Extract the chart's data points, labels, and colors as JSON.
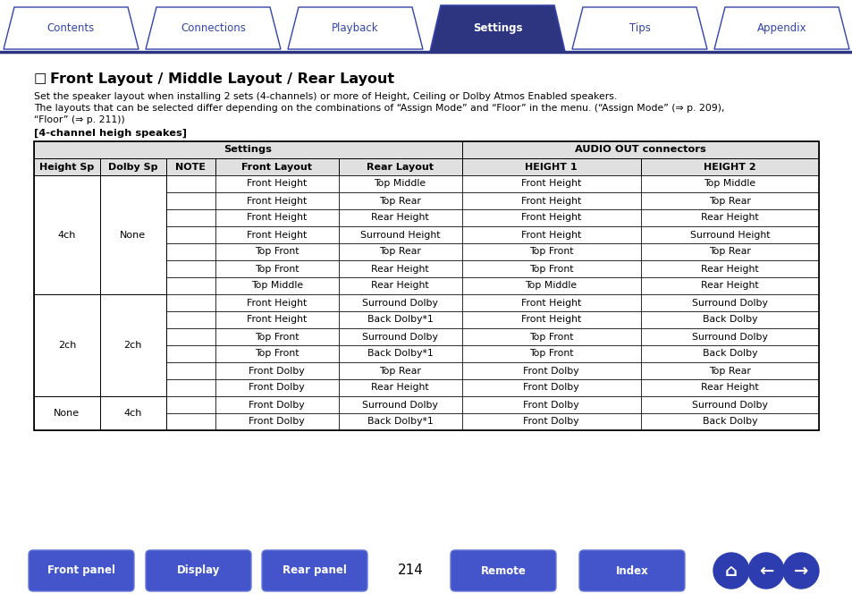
{
  "bg_color": "#ffffff",
  "tab_labels": [
    "Contents",
    "Connections",
    "Playback",
    "Settings",
    "Tips",
    "Appendix"
  ],
  "active_tab": 3,
  "tab_color_active": "#2d3580",
  "tab_color_inactive": "#ffffff",
  "tab_text_color_active": "#ffffff",
  "tab_text_color_inactive": "#3344aa",
  "tab_border_color": "#3344aa",
  "nav_line_color": "#2d3580",
  "section_title_square": "□",
  "section_title_text": "Front Layout / Middle Layout / Rear Layout",
  "body_text1": "Set the speaker layout when installing 2 sets (4-channels) or more of Height, Ceiling or Dolby Atmos Enabled speakers.",
  "body_text2": "The layouts that can be selected differ depending on the combinations of “Assign Mode” and “Floor” in the menu. (“Assign Mode” (⇒ p. 209),",
  "body_text3": "“Floor” (⇒ p. 211))",
  "section_label": "[4-channel heigh speakes]",
  "table_header1_left": "Settings",
  "table_header1_right": "AUDIO OUT connectors",
  "table_header2": [
    "Height Sp",
    "Dolby Sp",
    "NOTE",
    "Front Layout",
    "Rear Layout",
    "HEIGHT 1",
    "HEIGHT 2"
  ],
  "table_rows": [
    [
      "4ch",
      "None",
      "",
      "Front Height",
      "Top Middle",
      "Front Height",
      "Top Middle"
    ],
    [
      "",
      "",
      "",
      "Front Height",
      "Top Rear",
      "Front Height",
      "Top Rear"
    ],
    [
      "",
      "",
      "",
      "Front Height",
      "Rear Height",
      "Front Height",
      "Rear Height"
    ],
    [
      "",
      "",
      "",
      "Front Height",
      "Surround Height",
      "Front Height",
      "Surround Height"
    ],
    [
      "",
      "",
      "",
      "Top Front",
      "Top Rear",
      "Top Front",
      "Top Rear"
    ],
    [
      "",
      "",
      "",
      "Top Front",
      "Rear Height",
      "Top Front",
      "Rear Height"
    ],
    [
      "",
      "",
      "",
      "Top Middle",
      "Rear Height",
      "Top Middle",
      "Rear Height"
    ],
    [
      "2ch",
      "2ch",
      "",
      "Front Height",
      "Surround Dolby",
      "Front Height",
      "Surround Dolby"
    ],
    [
      "",
      "",
      "",
      "Front Height",
      "Back Dolby*1",
      "Front Height",
      "Back Dolby"
    ],
    [
      "",
      "",
      "",
      "Top Front",
      "Surround Dolby",
      "Top Front",
      "Surround Dolby"
    ],
    [
      "",
      "",
      "",
      "Top Front",
      "Back Dolby*1",
      "Top Front",
      "Back Dolby"
    ],
    [
      "",
      "",
      "",
      "Front Dolby",
      "Top Rear",
      "Front Dolby",
      "Top Rear"
    ],
    [
      "",
      "",
      "",
      "Front Dolby",
      "Rear Height",
      "Front Dolby",
      "Rear Height"
    ],
    [
      "None",
      "4ch",
      "",
      "Front Dolby",
      "Surround Dolby",
      "Front Dolby",
      "Surround Dolby"
    ],
    [
      "",
      "",
      "",
      "Front Dolby",
      "Back Dolby*1",
      "Front Dolby",
      "Back Dolby"
    ]
  ],
  "merge_groups": [
    [
      0,
      7,
      0,
      "4ch"
    ],
    [
      0,
      7,
      1,
      "None"
    ],
    [
      7,
      6,
      0,
      "2ch"
    ],
    [
      7,
      6,
      1,
      "2ch"
    ],
    [
      13,
      2,
      0,
      "None"
    ],
    [
      13,
      2,
      1,
      "4ch"
    ]
  ],
  "bottom_buttons": [
    "Front panel",
    "Display",
    "Rear panel",
    "Remote",
    "Index"
  ],
  "page_number": "214",
  "button_color_top": "#5566dd",
  "button_color_mid": "#3344bb",
  "button_color_bot": "#4455cc",
  "button_text_color": "#ffffff",
  "icon_circle_color": "#2d3db0"
}
